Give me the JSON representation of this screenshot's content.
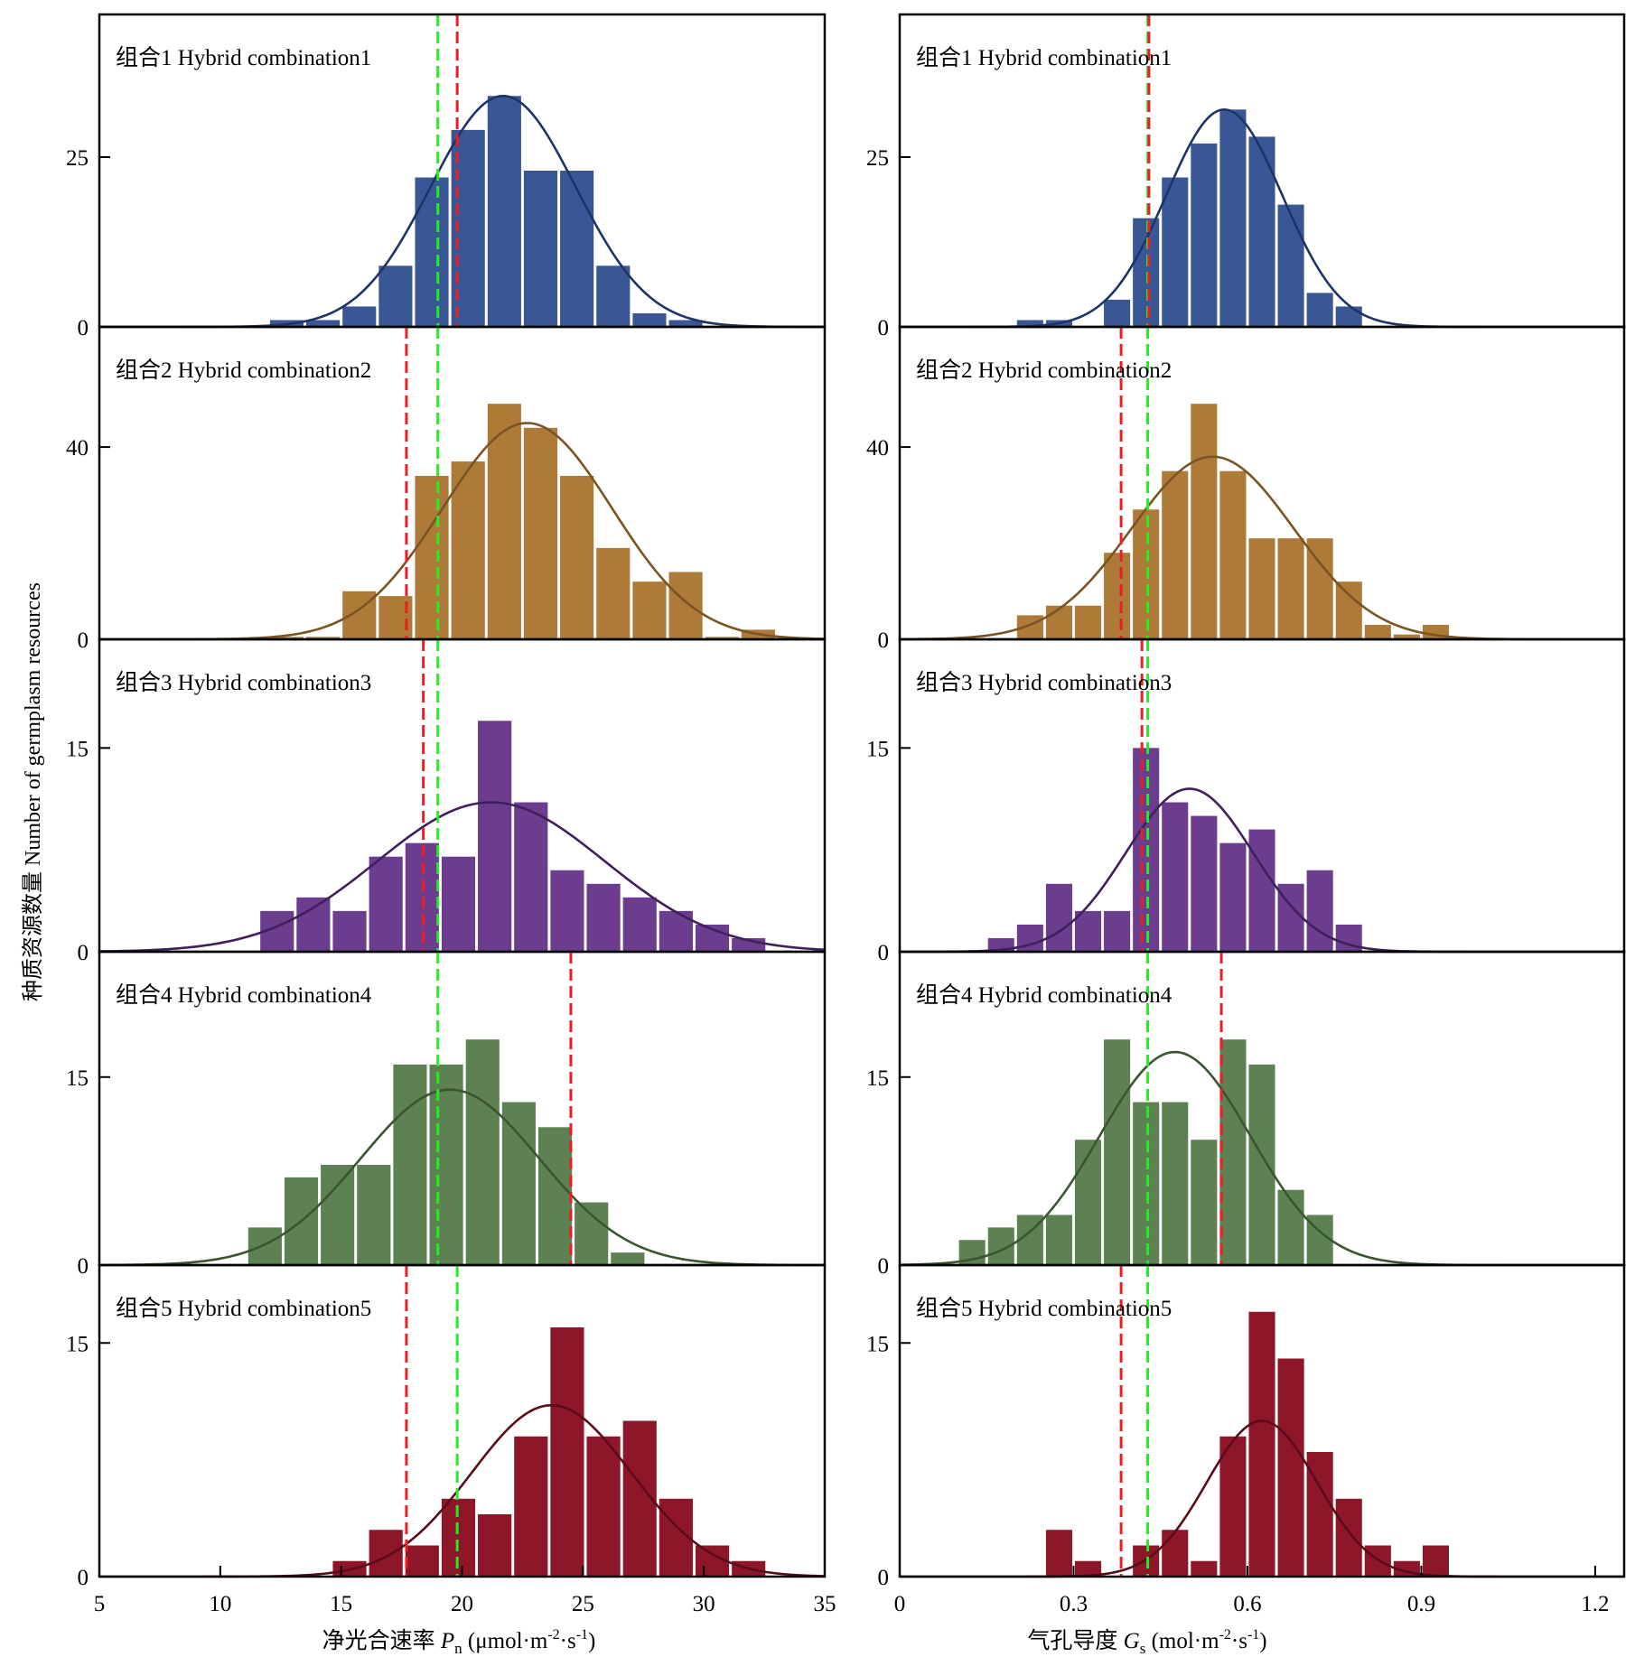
{
  "figure": {
    "ylabel": "种质资源数量 Number of germplasm resources",
    "left_xlabel": {
      "prefix": "净光合速率 ",
      "sym": "P",
      "sub": "n",
      "unit_a": " (μmol·m",
      "sup1": "-2",
      "unit_b": "·s",
      "sup2": "-1",
      "unit_c": ")"
    },
    "right_xlabel": {
      "prefix": "气孔导度 ",
      "sym": "G",
      "sub": "s",
      "unit_a": " (mol·m",
      "sup1": "-2",
      "unit_b": "·s",
      "sup2": "-1",
      "unit_c": ")"
    }
  },
  "colors": {
    "bars": [
      "#3a5795",
      "#ad7a38",
      "#6c3d8f",
      "#5d8152",
      "#8e1629"
    ],
    "curves": [
      "#1f3466",
      "#7a5423",
      "#3f1f5c",
      "#3a5530",
      "#5a0c18"
    ],
    "ref_red": "#ee1c24",
    "ref_green": "#22ee22"
  },
  "chart_data": [
    {
      "type": "histogram",
      "variable": "Pn",
      "xlim": [
        5,
        35
      ],
      "xticks": [
        "5",
        "10",
        "15",
        "20",
        "25",
        "30",
        "35"
      ],
      "bin_width": 1.5,
      "panels": [
        {
          "title": "组合1 Hybrid combination1",
          "ylim": [
            0,
            46
          ],
          "yticks": [
            0,
            25
          ],
          "bins_start": 12.0,
          "counts": [
            1,
            1,
            3,
            9,
            22,
            29,
            34,
            23,
            23,
            9,
            2,
            1
          ],
          "fit": {
            "mean": 21.7,
            "sd": 3.0,
            "peak": 34
          },
          "red_line": 19.8,
          "green_line": 19.0
        },
        {
          "title": "组合2 Hybrid combination2",
          "ylim": [
            0,
            65
          ],
          "yticks": [
            0,
            40
          ],
          "bins_start": 12.0,
          "counts": [
            0.5,
            0.5,
            10,
            9,
            34,
            37,
            49,
            44,
            34,
            19,
            12,
            14,
            0.5,
            2
          ],
          "fit": {
            "mean": 22.7,
            "sd": 3.5,
            "peak": 45
          },
          "red_line": 17.7,
          "green_line": 19.0
        },
        {
          "title": "组合3 Hybrid combination3",
          "ylim": [
            0,
            23
          ],
          "yticks": [
            0,
            15
          ],
          "bins_start": 11.6,
          "counts": [
            3,
            4,
            3,
            7,
            8,
            7,
            17,
            11,
            6,
            5,
            4,
            3,
            2,
            1
          ],
          "fit": {
            "mean": 21.2,
            "sd": 4.7,
            "peak": 11
          },
          "red_line": 18.4,
          "green_line": 19.0
        },
        {
          "title": "组合4 Hybrid combination4",
          "ylim": [
            0,
            25
          ],
          "yticks": [
            0,
            15
          ],
          "bins_start": 11.1,
          "counts": [
            3,
            7,
            8,
            8,
            16,
            16,
            18,
            13,
            11,
            5,
            1
          ],
          "fit": {
            "mean": 19.5,
            "sd": 3.7,
            "peak": 14
          },
          "red_line": 24.5,
          "green_line": 19.0
        },
        {
          "title": "组合5 Hybrid combination5",
          "ylim": [
            0,
            20
          ],
          "yticks": [
            0,
            15
          ],
          "bins_start": 14.6,
          "counts": [
            1,
            3,
            2,
            5,
            4,
            9,
            16,
            9,
            10,
            5,
            2,
            1
          ],
          "fit": {
            "mean": 23.7,
            "sd": 3.3,
            "peak": 11
          },
          "red_line": 17.7,
          "green_line": 19.8
        }
      ]
    },
    {
      "type": "histogram",
      "variable": "Gs",
      "xlim": [
        0,
        1.25
      ],
      "xticks": [
        "0",
        "0.3",
        "0.6",
        "0.9",
        "1.2"
      ],
      "bin_width": 0.05,
      "panels": [
        {
          "title": "组合1 Hybrid combination1",
          "ylim": [
            0,
            46
          ],
          "yticks": [
            0,
            25
          ],
          "bins_start": 0.2,
          "counts": [
            1,
            1,
            0,
            4,
            16,
            22,
            27,
            32,
            28,
            18,
            5,
            3
          ],
          "fit": {
            "mean": 0.56,
            "sd": 0.1,
            "peak": 32
          },
          "red_line": 0.43,
          "green_line": 0.428
        },
        {
          "title": "组合2 Hybrid combination2",
          "ylim": [
            0,
            65
          ],
          "yticks": [
            0,
            40
          ],
          "bins_start": 0.2,
          "counts": [
            5,
            7,
            7,
            18,
            27,
            35,
            49,
            35,
            21,
            21,
            21,
            12,
            3,
            1,
            3
          ],
          "fit": {
            "mean": 0.54,
            "sd": 0.14,
            "peak": 38
          },
          "red_line": 0.382,
          "green_line": 0.428
        },
        {
          "title": "组合3 Hybrid combination3",
          "ylim": [
            0,
            23
          ],
          "yticks": [
            0,
            15
          ],
          "bins_start": 0.15,
          "counts": [
            1,
            2,
            5,
            3,
            3,
            15,
            11,
            10,
            8,
            9,
            5,
            6,
            2
          ],
          "fit": {
            "mean": 0.5,
            "sd": 0.11,
            "peak": 12
          },
          "red_line": 0.418,
          "green_line": 0.428
        },
        {
          "title": "组合4 Hybrid combination4",
          "ylim": [
            0,
            25
          ],
          "yticks": [
            0,
            15
          ],
          "bins_start": 0.1,
          "counts": [
            2,
            3,
            4,
            4,
            10,
            18,
            13,
            13,
            10,
            18,
            16,
            6,
            4
          ],
          "fit": {
            "mean": 0.475,
            "sd": 0.13,
            "peak": 17
          },
          "red_line": 0.555,
          "green_line": 0.428
        },
        {
          "title": "组合5 Hybrid combination5",
          "ylim": [
            0,
            20
          ],
          "yticks": [
            0,
            15
          ],
          "bins_start": 0.25,
          "counts": [
            3,
            1,
            0,
            2,
            3,
            1,
            9,
            17,
            14,
            8,
            5,
            2,
            1,
            2
          ],
          "fit": {
            "mean": 0.625,
            "sd": 0.095,
            "peak": 10
          },
          "red_line": 0.382,
          "green_line": 0.428
        }
      ]
    }
  ]
}
